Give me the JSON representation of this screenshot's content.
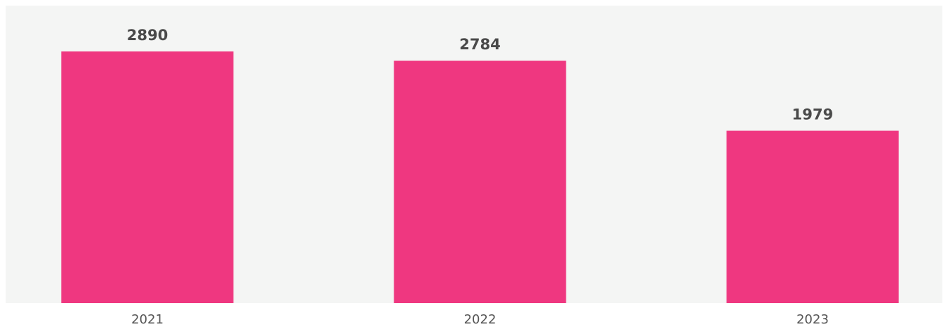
{
  "chart_data": {
    "type": "bar",
    "categories": [
      "2021",
      "2022",
      "2023"
    ],
    "values": [
      2890,
      2784,
      1979
    ],
    "color": "#ef3780"
  }
}
